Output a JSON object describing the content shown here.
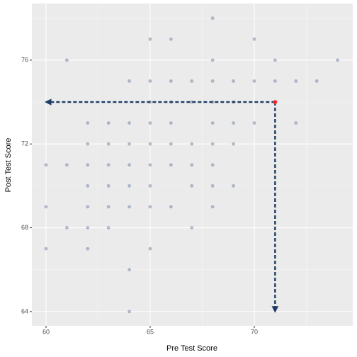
{
  "chart_data": {
    "type": "scatter",
    "xlabel": "Pre Test Score",
    "ylabel": "Post Test Score",
    "xlim": [
      59.32,
      74.73
    ],
    "ylim": [
      63.32,
      78.7
    ],
    "xticks": [
      60,
      65,
      70
    ],
    "yticks": [
      64,
      68,
      72,
      76
    ],
    "grid": true,
    "color": "#34507a",
    "x": [
      68,
      65,
      66,
      70,
      61,
      68,
      71,
      74,
      64,
      65,
      66,
      67,
      68,
      69,
      70,
      71,
      72,
      73,
      65,
      66,
      67,
      68,
      69,
      62,
      63,
      64,
      65,
      66,
      68,
      69,
      70,
      72,
      62,
      63,
      64,
      65,
      66,
      67,
      68,
      69,
      60,
      61,
      62,
      63,
      64,
      65,
      66,
      67,
      68,
      62,
      63,
      64,
      65,
      67,
      68,
      69,
      60,
      62,
      63,
      64,
      65,
      66,
      68,
      61,
      62,
      63,
      67,
      60,
      62,
      65,
      64,
      64
    ],
    "y": [
      78,
      77,
      77,
      77,
      76,
      76,
      76,
      76,
      75,
      75,
      75,
      75,
      75,
      75,
      75,
      75,
      75,
      75,
      74,
      74,
      74,
      74,
      74,
      73,
      73,
      73,
      73,
      73,
      73,
      73,
      73,
      73,
      72,
      72,
      72,
      72,
      72,
      72,
      72,
      72,
      71,
      71,
      71,
      71,
      71,
      71,
      71,
      71,
      71,
      70,
      70,
      70,
      70,
      70,
      70,
      70,
      69,
      69,
      69,
      69,
      69,
      69,
      69,
      68,
      68,
      68,
      68,
      67,
      67,
      67,
      66,
      64
    ],
    "highlight": {
      "x": 71,
      "y": 74,
      "color": "#ff2020"
    },
    "arrows": [
      {
        "x": [
          71,
          60
        ],
        "y": [
          74,
          74
        ]
      },
      {
        "x": [
          71,
          71
        ],
        "y": [
          74,
          64
        ]
      }
    ],
    "arrow_color": "#1f3d66"
  }
}
